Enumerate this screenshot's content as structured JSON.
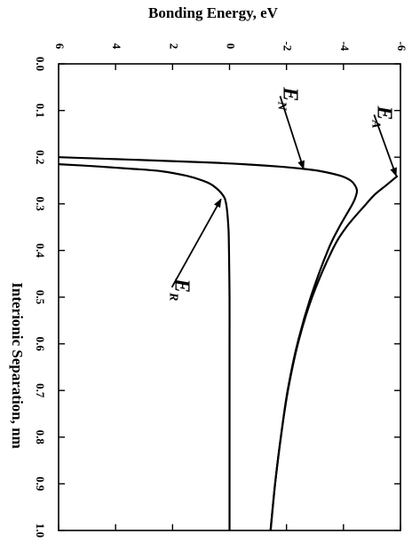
{
  "chart_data": {
    "type": "line",
    "orientation": "rotated-90",
    "xlabel": "Interionic Separation, nm",
    "ylabel": "Bonding Energy, eV",
    "xlim": [
      0.0,
      1.0
    ],
    "ylim": [
      -6,
      6
    ],
    "x_ticks": [
      "0.0",
      "0.1",
      "0.2",
      "0.3",
      "0.4",
      "0.5",
      "0.6",
      "0.7",
      "0.8",
      "0.9",
      "1.0"
    ],
    "y_ticks": [
      "-6",
      "-4",
      "-2",
      "0",
      "2",
      "4",
      "6"
    ],
    "grid": false,
    "series": [
      {
        "name": "E_A",
        "label_main": "E",
        "label_sub": "A",
        "color": "#000000",
        "x": [
          0.24,
          0.26,
          0.28,
          0.3,
          0.35,
          0.4,
          0.5,
          0.6,
          0.7,
          0.8,
          0.9,
          1.0
        ],
        "y": [
          -5.9,
          -5.5,
          -5.1,
          -4.8,
          -4.1,
          -3.6,
          -2.9,
          -2.4,
          -2.05,
          -1.8,
          -1.6,
          -1.44
        ]
      },
      {
        "name": "E_N",
        "label_main": "E",
        "label_sub": "N",
        "color": "#000000",
        "x": [
          0.2,
          0.205,
          0.21,
          0.215,
          0.22,
          0.225,
          0.23,
          0.24,
          0.25,
          0.26,
          0.27,
          0.28,
          0.3,
          0.35,
          0.4,
          0.5,
          0.6,
          0.7,
          0.8,
          0.9,
          1.0
        ],
        "y": [
          6,
          3.6,
          1.3,
          -0.5,
          -1.7,
          -2.6,
          -3.2,
          -3.9,
          -4.25,
          -4.4,
          -4.47,
          -4.45,
          -4.32,
          -3.85,
          -3.45,
          -2.85,
          -2.38,
          -2.04,
          -1.8,
          -1.6,
          -1.44
        ]
      },
      {
        "name": "E_R",
        "label_main": "E",
        "label_sub": "R",
        "color": "#000000",
        "x": [
          0.215,
          0.22,
          0.225,
          0.23,
          0.24,
          0.25,
          0.26,
          0.28,
          0.3,
          0.35,
          0.4,
          0.5,
          0.6,
          0.7,
          0.8,
          0.9,
          1.0
        ],
        "y": [
          6,
          4.6,
          3.4,
          2.4,
          1.5,
          0.95,
          0.6,
          0.25,
          0.12,
          0.04,
          0.02,
          0.0,
          0.0,
          0.0,
          0.0,
          0.0,
          0.0
        ]
      }
    ],
    "annotations": [
      {
        "series": "E_A",
        "text_x": 0.09,
        "text_y": -5.2,
        "arrow_to_x": 0.24,
        "arrow_to_y": -5.85
      },
      {
        "series": "E_N",
        "text_x": 0.05,
        "text_y": -1.9,
        "arrow_to_x": 0.225,
        "arrow_to_y": -2.6
      },
      {
        "series": "E_R",
        "text_x": 0.46,
        "text_y": 1.9,
        "arrow_to_x": 0.29,
        "arrow_to_y": 0.3
      }
    ]
  }
}
